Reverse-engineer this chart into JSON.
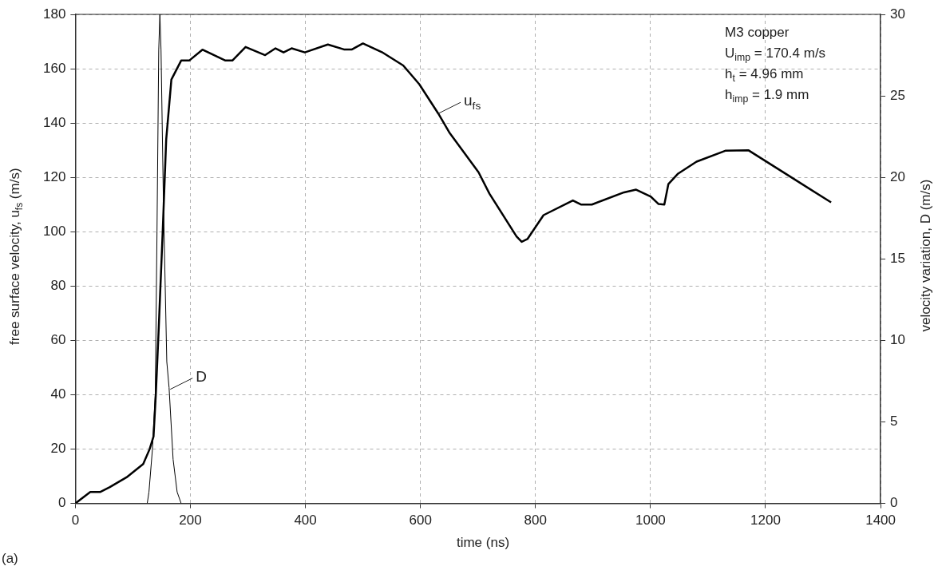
{
  "chart_data": {
    "type": "line",
    "title": "(a)",
    "xlabel": "time (ns)",
    "ylabel": "free surface velocity, u$_{fs}$ (m/s)",
    "y2label": "velocity variation, D  (m/s)",
    "xlim": [
      0,
      1400
    ],
    "xticks": [
      0,
      200,
      400,
      600,
      800,
      1000,
      1200,
      1400
    ],
    "ylim": [
      0,
      180
    ],
    "yticks": [
      0,
      20,
      40,
      60,
      80,
      100,
      120,
      140,
      160,
      180
    ],
    "y2lim": [
      0,
      30
    ],
    "y2ticks": [
      0,
      5,
      10,
      15,
      20,
      25,
      30
    ],
    "grid": true,
    "marker": "none",
    "line_style": "solid",
    "annotations": [
      "M3 copper",
      "U$_{imp}$ = 170.4 m/s",
      "h$_{t}$ = 4.96 mm",
      "h$_{imp}$ = 1.9 mm",
      {
        "text": "D",
        "x": 165,
        "y": 42
      },
      {
        "text": "u$_{fs}$",
        "x": 631,
        "y": 143.5
      }
    ],
    "series": [
      {
        "color": "#000000",
        "x": [
          0,
          26,
          43,
          60,
          89,
          118,
          129,
          136,
          140,
          145,
          152,
          158,
          167,
          184,
          198,
          221,
          261,
          273,
          296,
          330,
          348,
          362,
          376,
          399,
          439,
          467,
          481,
          500,
          533,
          570,
          598,
          631,
          650,
          701,
          720,
          767,
          776,
          786,
          814,
          865,
          879,
          898,
          954,
          975,
          1000,
          1014,
          1024,
          1031,
          1048,
          1080,
          1130,
          1170,
          1230,
          1314
        ],
        "values": [
          0,
          4.2,
          4.2,
          6,
          9.6,
          14.5,
          19.9,
          24.7,
          40.4,
          64.5,
          100.6,
          134,
          156,
          163,
          163,
          167,
          163,
          163,
          168,
          165,
          167.5,
          166,
          167.5,
          166,
          168.9,
          167.1,
          167.1,
          169.3,
          166.1,
          161.2,
          154.3,
          143.5,
          136.6,
          121.9,
          114,
          98.3,
          96.3,
          97.3,
          106.1,
          111.5,
          110,
          110,
          114.5,
          115.5,
          113,
          110.2,
          110,
          117.5,
          121.4,
          125.8,
          129.8,
          130,
          122,
          110.8
        ]
      },
      {
        "color": "#000000",
        "axis": "y2",
        "x": [
          125,
          128,
          134,
          139,
          142,
          145,
          147,
          149,
          153,
          159,
          163,
          170,
          177,
          184
        ],
        "values": [
          0,
          0.7,
          3.3,
          6.7,
          16.7,
          27.8,
          30,
          27.8,
          18.8,
          8.7,
          7.1,
          2.7,
          0.7,
          0
        ]
      }
    ]
  }
}
